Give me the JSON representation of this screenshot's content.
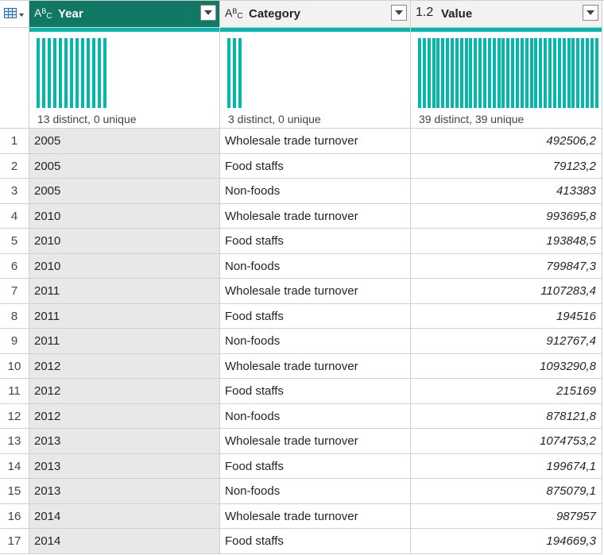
{
  "columns": {
    "year": {
      "type_label": "ABC",
      "name": "Year",
      "stats": "13 distinct, 0 unique",
      "bar_count": 13
    },
    "category": {
      "type_label": "ABC",
      "name": "Category",
      "stats": "3 distinct, 0 unique",
      "bar_count": 3
    },
    "value": {
      "type_label": "1.2",
      "name": "Value",
      "stats": "39 distinct, 39 unique",
      "bar_count": 39
    }
  },
  "rows": [
    {
      "n": "1",
      "year": "2005",
      "category": "Wholesale trade turnover",
      "value": "492506,2"
    },
    {
      "n": "2",
      "year": "2005",
      "category": "Food staffs",
      "value": "79123,2"
    },
    {
      "n": "3",
      "year": "2005",
      "category": "Non-foods",
      "value": "413383"
    },
    {
      "n": "4",
      "year": "2010",
      "category": "Wholesale trade turnover",
      "value": "993695,8"
    },
    {
      "n": "5",
      "year": "2010",
      "category": "Food staffs",
      "value": "193848,5"
    },
    {
      "n": "6",
      "year": "2010",
      "category": "Non-foods",
      "value": "799847,3"
    },
    {
      "n": "7",
      "year": "2011",
      "category": "Wholesale trade turnover",
      "value": "1107283,4"
    },
    {
      "n": "8",
      "year": "2011",
      "category": "Food staffs",
      "value": "194516"
    },
    {
      "n": "9",
      "year": "2011",
      "category": "Non-foods",
      "value": "912767,4"
    },
    {
      "n": "10",
      "year": "2012",
      "category": "Wholesale trade turnover",
      "value": "1093290,8"
    },
    {
      "n": "11",
      "year": "2012",
      "category": "Food staffs",
      "value": "215169"
    },
    {
      "n": "12",
      "year": "2012",
      "category": "Non-foods",
      "value": "878121,8"
    },
    {
      "n": "13",
      "year": "2013",
      "category": "Wholesale trade turnover",
      "value": "1074753,2"
    },
    {
      "n": "14",
      "year": "2013",
      "category": "Food staffs",
      "value": "199674,1"
    },
    {
      "n": "15",
      "year": "2013",
      "category": "Non-foods",
      "value": "875079,1"
    },
    {
      "n": "16",
      "year": "2014",
      "category": "Wholesale trade turnover",
      "value": "987957"
    },
    {
      "n": "17",
      "year": "2014",
      "category": "Food staffs",
      "value": "194669,3"
    }
  ],
  "icons": {
    "corner": "table-icon",
    "dropdown": "chevron-down-icon"
  },
  "colors": {
    "selected_header": "#117865",
    "profile_bar": "#01b8aa",
    "selected_column_bg": "#e8e8e8"
  }
}
